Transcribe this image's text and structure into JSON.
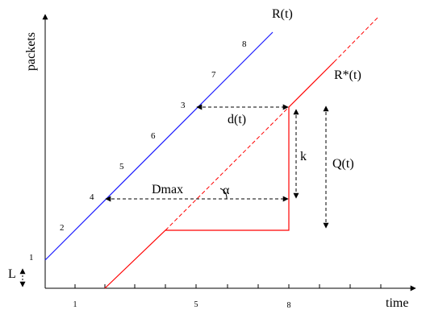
{
  "axes": {
    "y_label": "packets",
    "x_label": "time",
    "x_ticks": [
      "1",
      "5",
      "8"
    ]
  },
  "curves": {
    "R": {
      "label": "R(t)",
      "color": "#1a1aff"
    },
    "R_star": {
      "label": "R*(t)",
      "color": "#ff0000"
    }
  },
  "point_labels": [
    "1",
    "2",
    "3",
    "4",
    "5",
    "6",
    "7",
    "8"
  ],
  "annotations": {
    "d": "d(t)",
    "k": "k",
    "Q": "Q(t)",
    "Dmax": "Dmax",
    "alpha": "α",
    "L": "L"
  }
}
